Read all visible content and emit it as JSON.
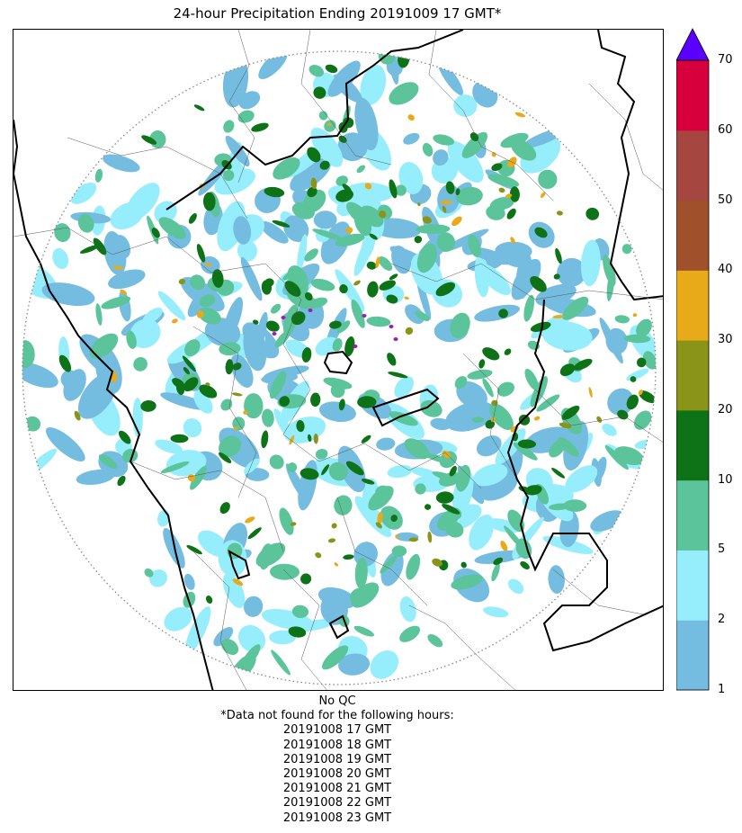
{
  "title": "24-hour Precipitation Ending 20191009 17 GMT*",
  "colorbar": {
    "tick_labels": [
      "1",
      "2",
      "5",
      "10",
      "20",
      "30",
      "40",
      "50",
      "60",
      "70"
    ],
    "levels": [
      1,
      2,
      5,
      10,
      20,
      30,
      40,
      50,
      60,
      70
    ],
    "colors": [
      "#74bde0",
      "#96eefc",
      "#5cc49a",
      "#0e7217",
      "#8a9419",
      "#e8aa19",
      "#a0502a",
      "#a64640",
      "#d8003c"
    ],
    "extend_max_color": "#5a00ff",
    "extend_max": true
  },
  "map": {
    "colors": {
      "precip_1": "#74bde0",
      "precip_2": "#96eefc",
      "precip_5": "#5cc49a",
      "precip_10": "#0e7217",
      "precip_20": "#8a9419",
      "precip_30": "#e8aa19",
      "precip_high": "#a11ab0",
      "coastline": "#000000",
      "boundary": "#555555",
      "range_ring": "#888888"
    }
  },
  "notes": {
    "qc": "No QC",
    "missing_header": "*Data not found for the following hours:",
    "missing_hours": [
      "20191008 17 GMT",
      "20191008 18 GMT",
      "20191008 19 GMT",
      "20191008 20 GMT",
      "20191008 21 GMT",
      "20191008 22 GMT",
      "20191008 23 GMT"
    ]
  }
}
